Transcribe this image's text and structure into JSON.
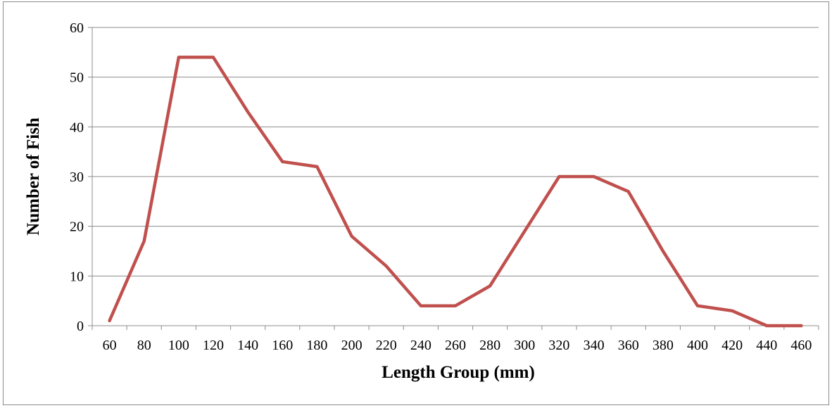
{
  "chart_data": {
    "type": "line",
    "title": "",
    "xlabel": "Length Group (mm)",
    "ylabel": "Number of Fish",
    "categories": [
      "60",
      "80",
      "100",
      "120",
      "140",
      "160",
      "180",
      "200",
      "220",
      "240",
      "260",
      "280",
      "300",
      "320",
      "340",
      "360",
      "380",
      "400",
      "420",
      "440",
      "460"
    ],
    "series": [
      {
        "values": [
          1,
          17,
          54,
          54,
          43,
          33,
          32,
          18,
          12,
          4,
          4,
          8,
          19,
          30,
          30,
          27,
          15,
          4,
          3,
          0,
          0
        ],
        "color": "#c0504d"
      }
    ],
    "ylim": [
      0,
      60
    ],
    "yticks": [
      0,
      10,
      20,
      30,
      40,
      50,
      60
    ],
    "grid": true,
    "legend": "none",
    "colors": {
      "gridline": "#8c8c8c",
      "line": "#c0504d"
    }
  }
}
